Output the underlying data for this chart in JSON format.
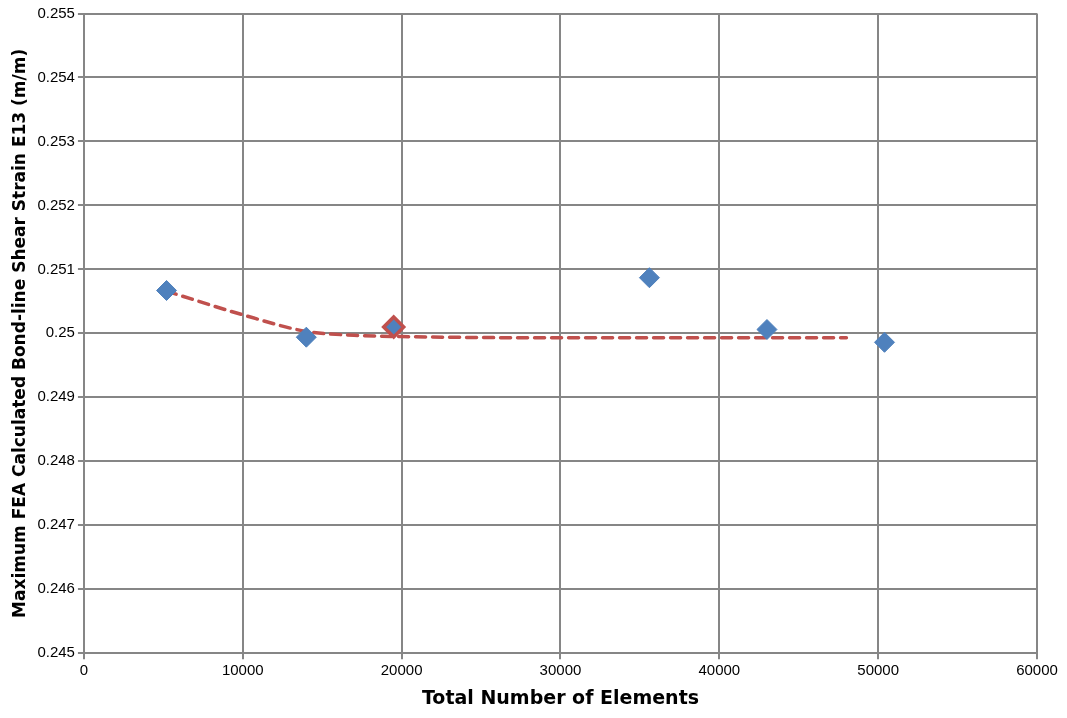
{
  "chart_data": {
    "type": "scatter",
    "xlabel": "Total Number of Elements",
    "ylabel": "Maximum FEA Calculated Bond-line Shear Strain E13 (m/m)",
    "xlim": [
      0,
      60000
    ],
    "xticks": [
      0,
      10000,
      20000,
      30000,
      40000,
      50000,
      60000
    ],
    "ylim": [
      0.245,
      0.255
    ],
    "yticks": [
      0.245,
      0.246,
      0.247,
      0.248,
      0.249,
      0.25,
      0.251,
      0.252,
      0.253,
      0.254,
      0.255
    ],
    "grid": true,
    "legend": false,
    "marker": "diamond",
    "series": [
      {
        "type": "line",
        "color": "#c0504d",
        "line_style": "dashed",
        "marker": "none",
        "x": [
          5200,
          10000,
          14000,
          17000,
          20000,
          30000,
          40000,
          48000
        ],
        "values": [
          0.25066,
          0.25029,
          0.25003,
          0.24997,
          0.24995,
          0.24993,
          0.24993,
          0.24993
        ]
      },
      {
        "color": "#4f81bd",
        "x": [
          5200,
          14000,
          19500,
          35600,
          43000,
          50400
        ],
        "values": [
          0.25067,
          0.24994,
          0.2501,
          0.25087,
          0.25006,
          0.24986
        ]
      },
      {
        "color": "#c0504d",
        "x": [
          19500
        ],
        "values": [
          0.2501
        ]
      }
    ]
  }
}
